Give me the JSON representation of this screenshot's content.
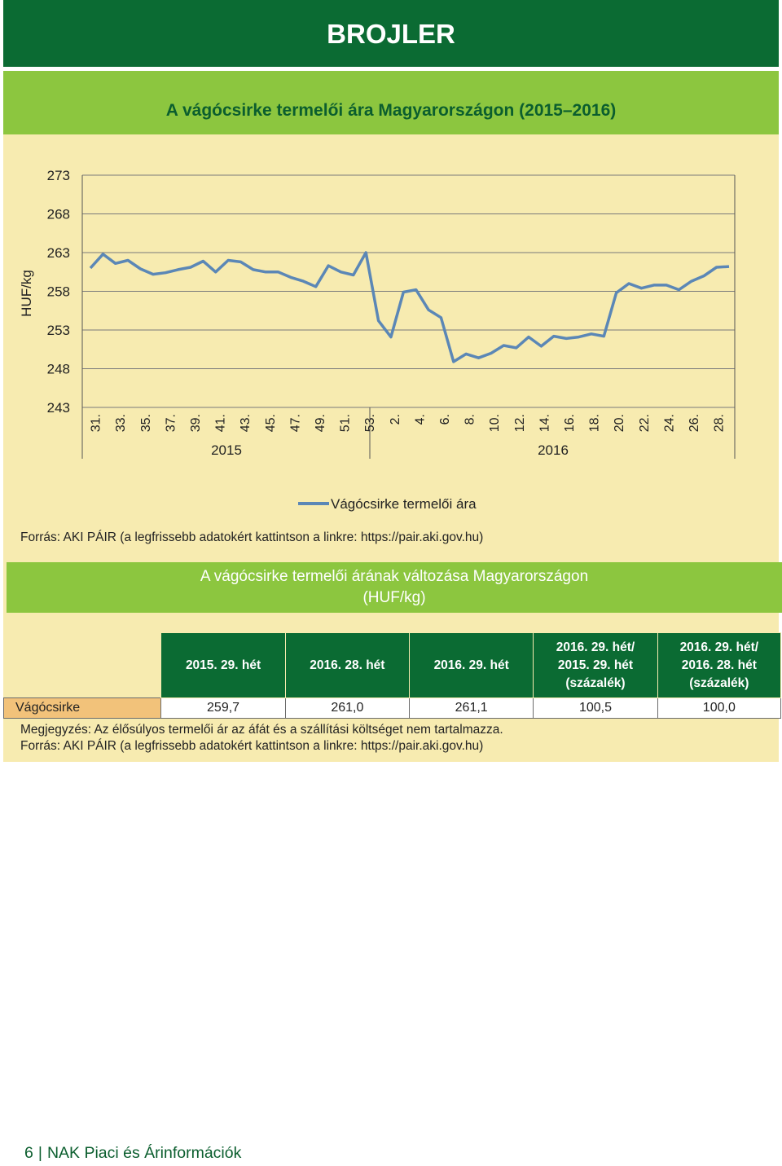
{
  "page_title": "BROJLER",
  "chart_header": "A vágócsirke termelői ára Magyarországon (2015–2016)",
  "chart_data": {
    "type": "line",
    "title": "A vágócsirke termelői ára Magyarországon (2015–2016)",
    "ylabel": "HUF/kg",
    "ylim": [
      243,
      273
    ],
    "yticks": [
      "243",
      "248",
      "253",
      "258",
      "263",
      "268",
      "273"
    ],
    "x_week_labels": [
      "31.",
      "33.",
      "35.",
      "37.",
      "39.",
      "41.",
      "43.",
      "45.",
      "47.",
      "49.",
      "51.",
      "53.",
      "2.",
      "4.",
      "6.",
      "8.",
      "10.",
      "12.",
      "14.",
      "16.",
      "18.",
      "20.",
      "22.",
      "24.",
      "26.",
      "28."
    ],
    "year_labels": [
      "2015",
      "2016"
    ],
    "legend_position": "bottom",
    "grid": "horizontal",
    "series": [
      {
        "name": "Vágócsirke termelői ára",
        "color": "#5b87b6",
        "values": [
          261.0,
          262.8,
          261.6,
          262.0,
          260.9,
          260.2,
          260.4,
          260.8,
          261.1,
          261.9,
          260.5,
          262.0,
          261.8,
          260.8,
          260.5,
          260.5,
          259.8,
          259.3,
          258.6,
          261.3,
          260.5,
          260.1,
          263.0,
          254.2,
          252.1,
          257.9,
          258.2,
          255.6,
          254.6,
          248.9,
          249.9,
          249.4,
          250.0,
          251.0,
          250.7,
          252.1,
          250.9,
          252.2,
          251.9,
          252.1,
          252.5,
          252.2,
          257.8,
          259.0,
          258.4,
          258.8,
          258.8,
          258.2,
          259.3,
          260.0,
          261.1,
          261.2
        ]
      }
    ]
  },
  "chart_source": "Forrás: AKI PÁIR (a legfrissebb adatokért kattintson a linkre: https://pair.aki.gov.hu)",
  "table_title_line1": "A vágócsirke termelői árának változása Magyarországon",
  "table_title_line2": "(HUF/kg)",
  "table": {
    "headers": [
      "2015. 29. hét",
      "2016. 28. hét",
      "2016. 29. hét"
    ],
    "pct_headers": [
      [
        "2016. 29. hét/",
        "2015. 29. hét",
        "(százalék)"
      ],
      [
        "2016. 29. hét/",
        "2016. 28. hét",
        "(százalék)"
      ]
    ],
    "rows": [
      {
        "label": "Vágócsirke",
        "values": [
          "259,7",
          "261,0",
          "261,1",
          "100,5",
          "100,0"
        ]
      }
    ]
  },
  "note": "Megjegyzés: Az élősúlyos termelői ár az áfát és a szállítási költséget nem tartalmazza.",
  "table_source": "Forrás: AKI PÁIR (a legfrissebb adatokért kattintson a linkre: https://pair.aki.gov.hu)",
  "footer": {
    "page_number": "6",
    "publication": "NAK Piaci és Árinformációk"
  }
}
